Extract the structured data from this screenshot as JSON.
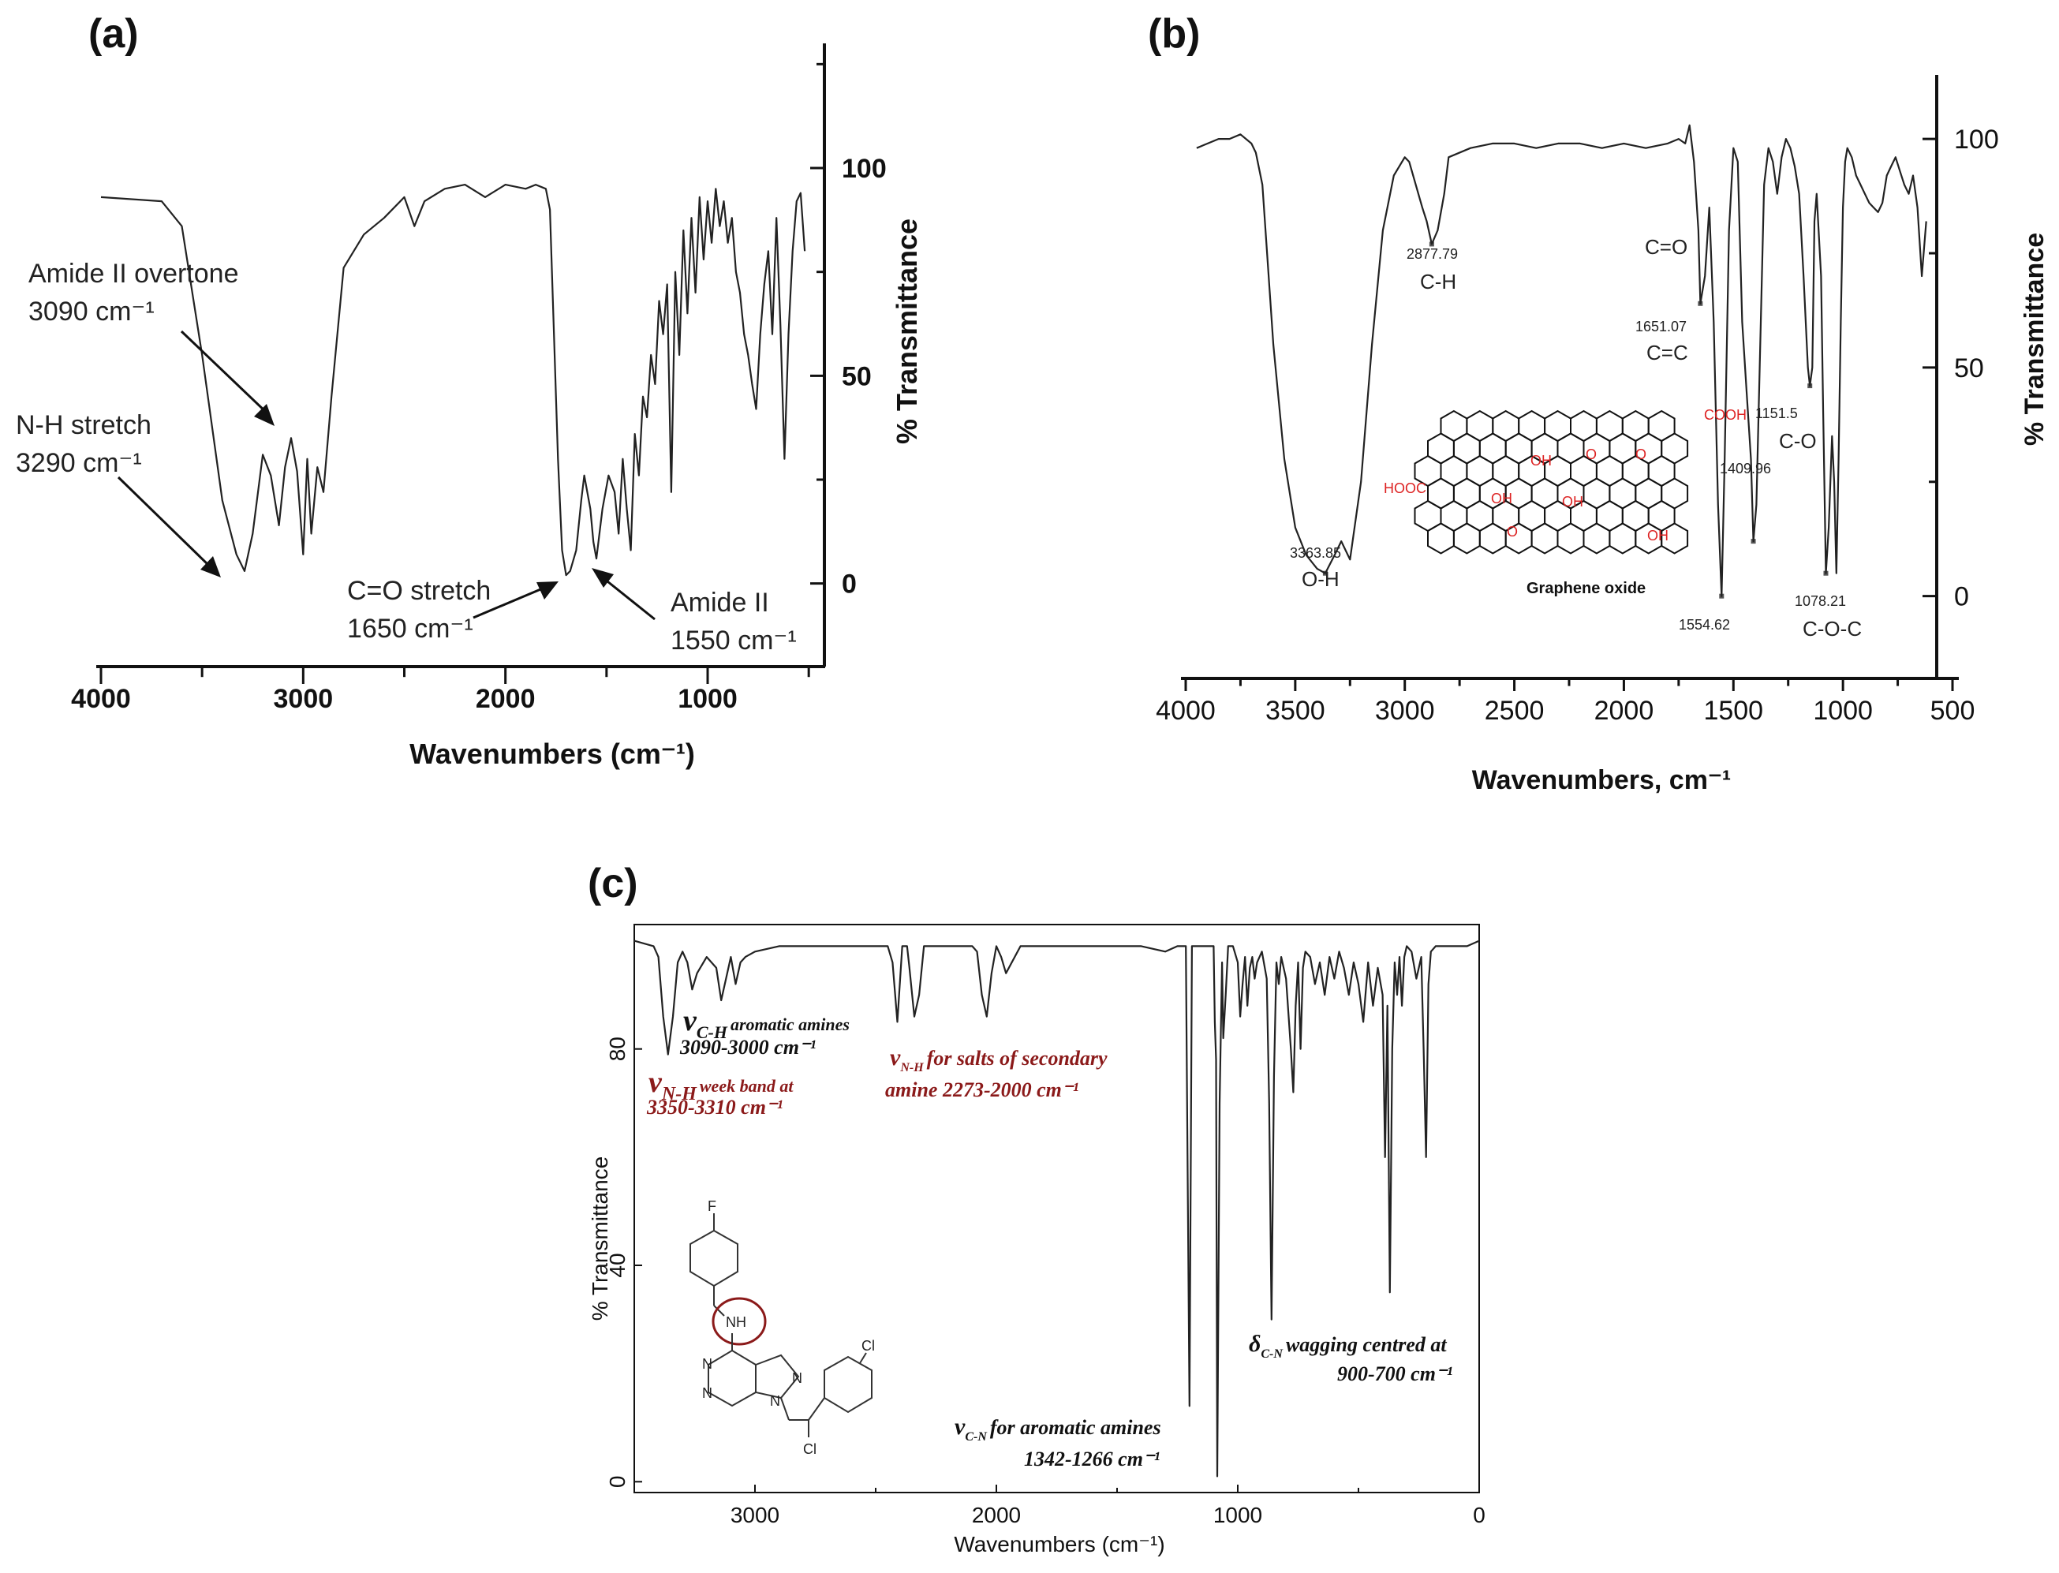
{
  "chart_data": [
    {
      "panel": "(a)",
      "type": "line",
      "xlabel": "Wavenumbers (cm⁻¹)",
      "ylabel": "% Transmittance",
      "xlim": [
        4000,
        450
      ],
      "ylim": [
        -20,
        130
      ],
      "xticks": [
        4000,
        3000,
        2000,
        1000
      ],
      "yticks": [
        0,
        50,
        100
      ],
      "series": [
        {
          "x": [
            4000,
            3700,
            3600,
            3500,
            3400,
            3330,
            3290,
            3250,
            3200,
            3160,
            3120,
            3090,
            3060,
            3030,
            3000,
            2980,
            2960,
            2930,
            2900,
            2860,
            2800,
            2700,
            2600,
            2500,
            2450,
            2400,
            2300,
            2200,
            2100,
            2000,
            1900,
            1850,
            1800,
            1780,
            1760,
            1740,
            1720,
            1700,
            1680,
            1650,
            1625,
            1610,
            1580,
            1565,
            1550,
            1520,
            1490,
            1460,
            1440,
            1420,
            1400,
            1380,
            1360,
            1340,
            1320,
            1300,
            1280,
            1260,
            1240,
            1220,
            1200,
            1180,
            1160,
            1140,
            1120,
            1100,
            1080,
            1060,
            1040,
            1020,
            1000,
            980,
            960,
            940,
            920,
            900,
            880,
            860,
            840,
            820,
            800,
            780,
            760,
            740,
            720,
            700,
            680,
            660,
            640,
            620,
            600,
            580,
            560,
            540,
            520
          ],
          "y": [
            93,
            92,
            86,
            55,
            20,
            7,
            3,
            12,
            31,
            26,
            14,
            28,
            35,
            27,
            7,
            30,
            12,
            28,
            22,
            45,
            76,
            84,
            88,
            93,
            86,
            92,
            95,
            96,
            93,
            96,
            95,
            96,
            95,
            90,
            60,
            30,
            8,
            2,
            3,
            8,
            20,
            26,
            18,
            10,
            6,
            18,
            26,
            22,
            12,
            30,
            18,
            8,
            36,
            26,
            45,
            40,
            55,
            48,
            68,
            60,
            72,
            22,
            75,
            55,
            85,
            65,
            88,
            70,
            93,
            78,
            92,
            82,
            95,
            86,
            92,
            82,
            88,
            75,
            70,
            60,
            55,
            48,
            42,
            60,
            72,
            80,
            60,
            88,
            62,
            30,
            60,
            80,
            92,
            94,
            80
          ]
        }
      ],
      "annotations": [
        {
          "text": [
            "Amide II overtone",
            "3090 cm⁻¹"
          ],
          "x": 3090,
          "y": 35
        },
        {
          "text": [
            "N-H stretch",
            "3290 cm⁻¹"
          ],
          "x": 3290,
          "y": 7
        },
        {
          "text": [
            "C=O stretch",
            "1650 cm⁻¹"
          ],
          "x": 1650,
          "y": 0
        },
        {
          "text": [
            "Amide II",
            "1550 cm⁻¹"
          ],
          "x": 1550,
          "y": 2
        }
      ]
    },
    {
      "panel": "(b)",
      "type": "line",
      "xlabel": "Wavenumbers, cm⁻¹",
      "ylabel": "% Transmittance",
      "xlim": [
        4000,
        500
      ],
      "ylim": [
        -18,
        114
      ],
      "xticks": [
        4000,
        3500,
        3000,
        2500,
        2000,
        1500,
        1000,
        500
      ],
      "yticks": [
        0,
        50,
        100
      ],
      "series": [
        {
          "x": [
            3950,
            3900,
            3850,
            3800,
            3750,
            3700,
            3680,
            3650,
            3600,
            3550,
            3500,
            3450,
            3400,
            3363,
            3320,
            3290,
            3250,
            3200,
            3150,
            3100,
            3050,
            3000,
            2980,
            2950,
            2920,
            2900,
            2877,
            2850,
            2820,
            2800,
            2700,
            2600,
            2500,
            2400,
            2300,
            2200,
            2100,
            2000,
            1900,
            1800,
            1750,
            1720,
            1700,
            1680,
            1660,
            1651,
            1630,
            1610,
            1590,
            1570,
            1554,
            1540,
            1520,
            1500,
            1480,
            1460,
            1440,
            1420,
            1409,
            1395,
            1380,
            1360,
            1340,
            1320,
            1300,
            1280,
            1260,
            1240,
            1220,
            1200,
            1180,
            1160,
            1151,
            1140,
            1130,
            1120,
            1100,
            1090,
            1078,
            1065,
            1050,
            1040,
            1030,
            1020,
            1010,
            1000,
            990,
            980,
            960,
            940,
            920,
            900,
            880,
            860,
            840,
            820,
            800,
            780,
            760,
            740,
            720,
            700,
            680,
            660,
            640,
            620
          ],
          "y": [
            98,
            99,
            100,
            100,
            101,
            99,
            97,
            90,
            55,
            30,
            15,
            9,
            6,
            5,
            9,
            12,
            8,
            25,
            55,
            80,
            92,
            96,
            95,
            90,
            85,
            82,
            77,
            80,
            88,
            96,
            98,
            99,
            99,
            98,
            99,
            99,
            98,
            99,
            98,
            99,
            100,
            99,
            103,
            95,
            80,
            64,
            70,
            85,
            60,
            20,
            0,
            30,
            80,
            98,
            95,
            60,
            45,
            30,
            12,
            20,
            50,
            90,
            98,
            95,
            88,
            96,
            100,
            98,
            94,
            88,
            70,
            50,
            46,
            50,
            82,
            88,
            70,
            40,
            5,
            15,
            35,
            25,
            5,
            30,
            60,
            85,
            95,
            98,
            96,
            92,
            90,
            88,
            86,
            85,
            84,
            86,
            92,
            94,
            96,
            93,
            90,
            88,
            92,
            85,
            70,
            82
          ]
        }
      ],
      "annotations": [
        {
          "value": "2877.79",
          "group": "C-H",
          "x": 2877,
          "y": 77
        },
        {
          "value": "3363.85",
          "group": "O-H",
          "x": 3363,
          "y": 5
        },
        {
          "value": "1651.07",
          "group": "C=O",
          "x": 1651,
          "y": 64
        },
        {
          "value": "",
          "group": "C=C",
          "x": 1600,
          "y": 50
        },
        {
          "value": "1554.62",
          "group": "",
          "x": 1554,
          "y": 0
        },
        {
          "value": "1409.96",
          "group": "",
          "x": 1409,
          "y": 12
        },
        {
          "value": "1151.5",
          "group": "C-O",
          "x": 1151,
          "y": 46
        },
        {
          "value": "1078.21",
          "group": "C-O-C",
          "x": 1078,
          "y": 5
        }
      ],
      "inset": {
        "caption": "Graphene oxide",
        "groups": [
          "COOH",
          "HOOC",
          "OH",
          "O"
        ]
      }
    },
    {
      "panel": "(c)",
      "type": "line",
      "xlabel": "Wavenumbers (cm⁻¹)",
      "ylabel": "% Transmittance",
      "xlim": [
        3500,
        0
      ],
      "ylim": [
        -2,
        103
      ],
      "xticks": [
        3000,
        2000,
        1000,
        0
      ],
      "yticks": [
        0,
        40,
        80
      ],
      "series": [
        {
          "x": [
            3500,
            3420,
            3400,
            3380,
            3360,
            3340,
            3320,
            3300,
            3280,
            3260,
            3240,
            3200,
            3160,
            3140,
            3120,
            3100,
            3080,
            3060,
            3040,
            3000,
            2900,
            2800,
            2600,
            2500,
            2450,
            2430,
            2410,
            2390,
            2370,
            2360,
            2340,
            2320,
            2300,
            2200,
            2100,
            2080,
            2060,
            2040,
            2020,
            2000,
            1980,
            1960,
            1900,
            1800,
            1700,
            1600,
            1500,
            1400,
            1300,
            1250,
            1230,
            1215,
            1200,
            1190,
            1180,
            1170,
            1120,
            1110,
            1100,
            1095,
            1090,
            1085,
            1075,
            1065,
            1060,
            1050,
            1040,
            1020,
            1000,
            990,
            980,
            970,
            960,
            950,
            940,
            930,
            920,
            900,
            880,
            870,
            860,
            850,
            840,
            830,
            820,
            800,
            780,
            770,
            760,
            750,
            740,
            730,
            720,
            700,
            680,
            660,
            640,
            620,
            600,
            580,
            560,
            540,
            520,
            500,
            480,
            460,
            440,
            420,
            400,
            390,
            380,
            370,
            360,
            350,
            340,
            330,
            320,
            310,
            300,
            280,
            260,
            240,
            230,
            220,
            210,
            200,
            180,
            160,
            140,
            120,
            100,
            50,
            0
          ],
          "y": [
            100,
            99,
            97,
            86,
            79,
            86,
            96,
            98,
            96,
            91,
            94,
            97,
            95,
            89,
            93,
            97,
            92,
            96,
            97,
            98,
            99,
            99,
            99,
            99,
            99,
            96,
            85,
            99,
            99,
            95,
            86,
            90,
            99,
            99,
            99,
            98,
            90,
            86,
            94,
            99,
            97,
            94,
            99,
            99,
            99,
            99,
            99,
            99,
            98,
            99,
            99,
            99,
            14,
            99,
            99,
            99,
            99,
            99,
            99,
            85,
            78,
            1,
            70,
            96,
            82,
            90,
            99,
            99,
            96,
            86,
            92,
            97,
            88,
            95,
            97,
            93,
            96,
            98,
            93,
            70,
            30,
            75,
            96,
            92,
            97,
            93,
            80,
            72,
            88,
            96,
            80,
            95,
            98,
            97,
            92,
            96,
            90,
            97,
            93,
            98,
            95,
            90,
            96,
            92,
            85,
            96,
            88,
            95,
            90,
            60,
            88,
            35,
            80,
            96,
            90,
            97,
            88,
            97,
            99,
            98,
            93,
            97,
            80,
            60,
            92,
            98,
            99,
            99,
            99,
            99,
            99,
            99,
            100
          ]
        }
      ],
      "annotations": [
        {
          "symbol": "ν",
          "sub": "C-H",
          "text": "aromatic amines",
          "line2": "3090-3000 cm⁻¹",
          "color": "#111111"
        },
        {
          "symbol": "ν",
          "sub": "N-H",
          "text": "week band at",
          "line2": "3350-3310 cm⁻¹",
          "color": "#8b1a1a"
        },
        {
          "symbol": "ν",
          "sub": "N-H",
          "text": "for salts of secondary",
          "line2": "amine 2273-2000 cm⁻¹",
          "color": "#8b1a1a"
        },
        {
          "symbol": "ν",
          "sub": "C-N",
          "text": "for aromatic amines",
          "line2": "1342-1266 cm⁻¹",
          "color": "#111111"
        },
        {
          "symbol": "δ",
          "sub": "C-N",
          "text": "wagging centred at",
          "line2": "900-700 cm⁻¹",
          "color": "#111111"
        }
      ],
      "molecule_labels": [
        "F",
        "NH",
        "N",
        "N",
        "N",
        "N",
        "Cl",
        "Cl"
      ]
    }
  ]
}
